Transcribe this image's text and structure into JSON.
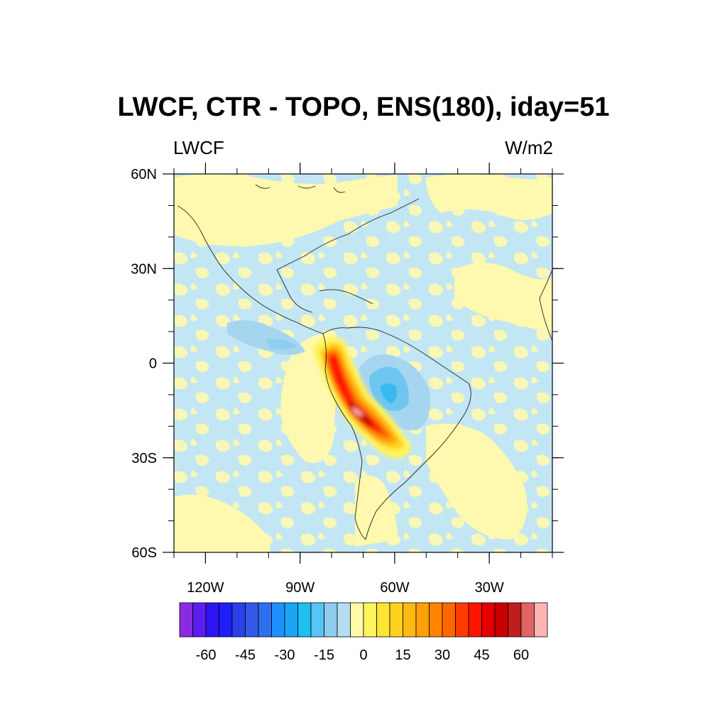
{
  "figure": {
    "title": "LWCF, CTR - TOPO, ENS(180), iday=51",
    "left_label": "LWCF",
    "right_label": "W/m2"
  },
  "map": {
    "lon_range": [
      -130,
      -10
    ],
    "lat_range": [
      -60,
      60
    ],
    "lat_ticks": [
      {
        "value": 60,
        "label": "60N"
      },
      {
        "value": 30,
        "label": "30N"
      },
      {
        "value": 0,
        "label": "0"
      },
      {
        "value": -30,
        "label": "30S"
      },
      {
        "value": -60,
        "label": "60S"
      }
    ],
    "lon_ticks": [
      {
        "value": -120,
        "label": "120W"
      },
      {
        "value": -90,
        "label": "90W"
      },
      {
        "value": -60,
        "label": "60W"
      },
      {
        "value": -30,
        "label": "30W"
      }
    ],
    "background_color": "#c3e6f4",
    "positive_color": "#fef9ae"
  },
  "chart_data": {
    "type": "heatmap",
    "field": "LWCF difference CTR - TOPO",
    "features": [
      {
        "kind": "positive_max",
        "center_lon": -72,
        "center_lat": -18,
        "peak": 70
      },
      {
        "kind": "positive_max",
        "center_lon": -78,
        "center_lat": 3,
        "peak": 50
      },
      {
        "kind": "negative_min",
        "center_lon": -63,
        "center_lat": -8,
        "peak": -25
      },
      {
        "kind": "negative_min",
        "center_lon": -100,
        "center_lat": 8,
        "peak": -12
      }
    ]
  },
  "colorbar": {
    "colors": [
      "#8a2be2",
      "#5c1ef0",
      "#2d14f5",
      "#1e1ef8",
      "#2a40e8",
      "#3458e8",
      "#2c70f0",
      "#1e90ff",
      "#1aa5f5",
      "#1ec0f0",
      "#56c4f6",
      "#8ecdee",
      "#b4def0",
      "#fff9a8",
      "#fff45c",
      "#ffe432",
      "#ffd21e",
      "#ffba12",
      "#ffa008",
      "#ff8400",
      "#ff6600",
      "#ff3c00",
      "#ff1400",
      "#e60000",
      "#c80000",
      "#be1e1e",
      "#e06464",
      "#ffb4b4"
    ],
    "labels": [
      {
        "text": "-60",
        "index": 2
      },
      {
        "text": "-45",
        "index": 4
      },
      {
        "text": "-30",
        "index": 6
      },
      {
        "text": "-15",
        "index": 8
      },
      {
        "text": "0",
        "index": 10
      },
      {
        "text": "15",
        "index": 12
      },
      {
        "text": "30",
        "index": 14
      },
      {
        "text": "45",
        "index": 16
      },
      {
        "text": "60",
        "index": 18
      }
    ]
  }
}
